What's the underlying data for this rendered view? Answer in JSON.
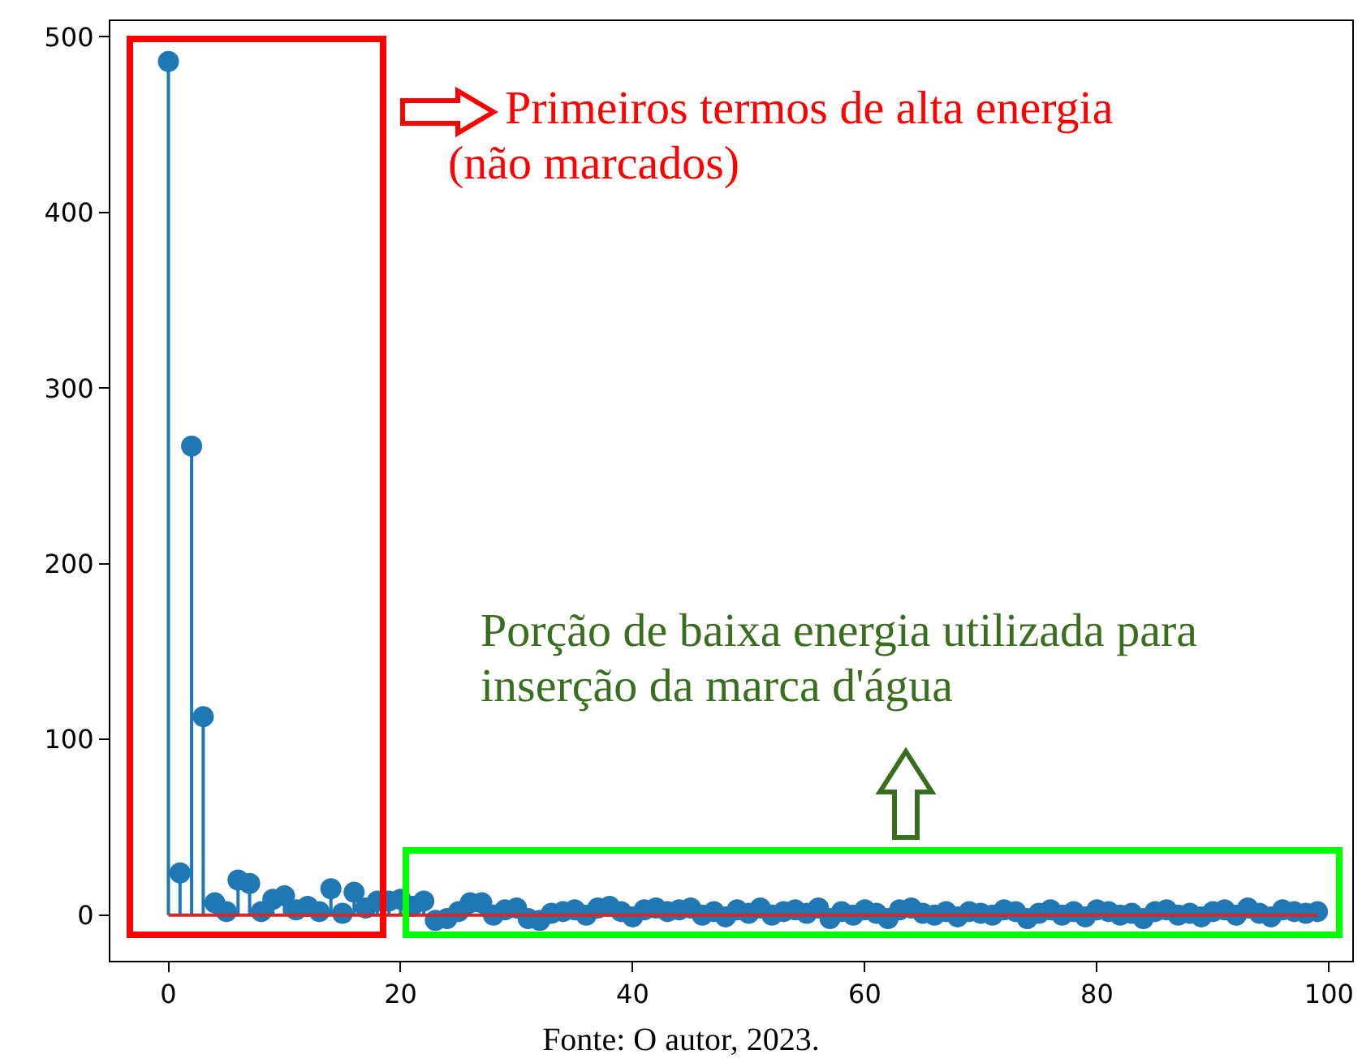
{
  "chart_data": {
    "type": "lollipop",
    "x": [
      0,
      1,
      2,
      3,
      4,
      5,
      6,
      7,
      8,
      9,
      10,
      11,
      12,
      13,
      14,
      15,
      16,
      17,
      18,
      19,
      20,
      21,
      22,
      23,
      24,
      25,
      26,
      27,
      28,
      29,
      30,
      31,
      32,
      33,
      34,
      35,
      36,
      37,
      38,
      39,
      40,
      41,
      42,
      43,
      44,
      45,
      46,
      47,
      48,
      49,
      50,
      51,
      52,
      53,
      54,
      55,
      56,
      57,
      58,
      59,
      60,
      61,
      62,
      63,
      64,
      65,
      66,
      67,
      68,
      69,
      70,
      71,
      72,
      73,
      74,
      75,
      76,
      77,
      78,
      79,
      80,
      81,
      82,
      83,
      84,
      85,
      86,
      87,
      88,
      89,
      90,
      91,
      92,
      93,
      94,
      95,
      96,
      97,
      98,
      99
    ],
    "series": [
      {
        "color": "#1f77b4",
        "values": [
          486,
          24,
          267,
          113,
          7,
          2,
          20,
          18,
          2,
          9,
          11,
          3,
          5,
          2,
          15,
          1,
          13,
          4,
          8,
          8,
          9,
          5,
          8,
          -3,
          -2,
          2,
          7,
          7,
          0,
          3,
          4,
          -2,
          -3,
          1,
          2,
          3,
          0,
          4,
          5,
          2,
          -1,
          3,
          4,
          2,
          3,
          4,
          0,
          2,
          -1,
          3,
          1,
          4,
          0,
          2,
          3,
          1,
          4,
          -2,
          2,
          0,
          3,
          1,
          -2,
          3,
          4,
          1,
          0,
          2,
          -1,
          2,
          1,
          0,
          3,
          2,
          -2,
          1,
          3,
          0,
          2,
          -1,
          3,
          2,
          0,
          1,
          -2,
          2,
          3,
          0,
          1,
          -1,
          2,
          3,
          0,
          4,
          1,
          -1,
          3,
          2,
          1,
          2
        ]
      }
    ],
    "marker": "circle",
    "ref_lines": [
      {
        "axis": "y",
        "value": 0,
        "color": "#d62728"
      }
    ],
    "xlim": [
      -5,
      102
    ],
    "ylim": [
      -26,
      509
    ],
    "xticks": [
      0,
      20,
      40,
      60,
      80,
      100
    ],
    "yticks": [
      0,
      100,
      200,
      300,
      400,
      500
    ],
    "grid": false,
    "annotations": [
      "Primeiros termos de alta energia (não marcados)",
      "Porção de baixa energia utilizada para inserção da marca d'água",
      "Fonte: O autor, 2023."
    ]
  }
}
